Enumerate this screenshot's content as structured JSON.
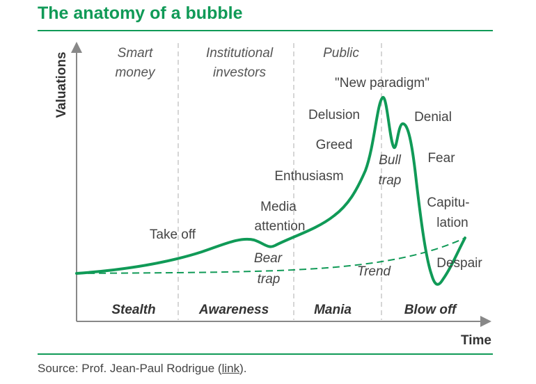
{
  "header": {
    "title": "The anatomy of a bubble"
  },
  "footer": {
    "source_prefix": "Source: Prof. Jean-Paul Rodrigue (",
    "link_text": "link",
    "source_suffix": ")."
  },
  "colors": {
    "accent": "#109a57",
    "text": "#333333",
    "axis": "#888888",
    "divider": "#c8c8c8"
  },
  "chart_data": {
    "type": "line",
    "title": "The anatomy of a bubble",
    "xlabel": "Time",
    "ylabel": "Valuations",
    "grid": false,
    "legend": "none",
    "series": [
      {
        "style": "solid"
      },
      {
        "style": "dashed"
      }
    ],
    "phases": [
      {
        "name": "Stealth",
        "investors": [
          "Smart",
          "money"
        ]
      },
      {
        "name": "Awareness",
        "investors": [
          "Institutional",
          "investors"
        ]
      },
      {
        "name": "Mania",
        "investors": [
          "Public"
        ]
      },
      {
        "name": "Blow off",
        "investors": []
      }
    ],
    "annotations": {
      "take_off": "Take off",
      "media": [
        "Media",
        "attention"
      ],
      "bear_trap": [
        "Bear",
        "trap"
      ],
      "enthusiasm": "Enthusiasm",
      "greed": "Greed",
      "delusion": "Delusion",
      "new_paradigm": "\"New paradigm\"",
      "bull_trap": [
        "Bull",
        "trap"
      ],
      "denial": "Denial",
      "fear": "Fear",
      "capitulation": [
        "Capitu-",
        "lation"
      ],
      "despair": "Despair",
      "trend": "Trend"
    }
  }
}
